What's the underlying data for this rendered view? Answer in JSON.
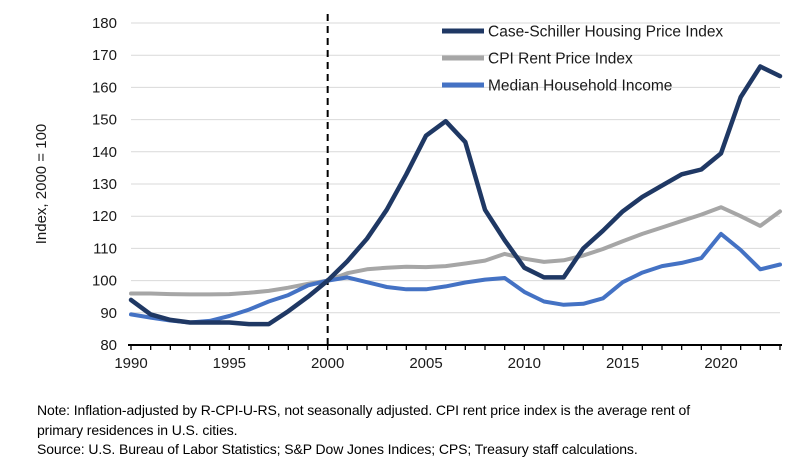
{
  "chart_data": {
    "type": "line",
    "title": "",
    "xlabel": "",
    "ylabel": "Index, 2000 = 100",
    "xlim": [
      1990,
      2023
    ],
    "ylim": [
      80,
      180
    ],
    "grid": "horizontal",
    "legend_position": "top-right",
    "x": [
      1990,
      1991,
      1992,
      1993,
      1994,
      1995,
      1996,
      1997,
      1998,
      1999,
      2000,
      2001,
      2002,
      2003,
      2004,
      2005,
      2006,
      2007,
      2008,
      2009,
      2010,
      2011,
      2012,
      2013,
      2014,
      2015,
      2016,
      2017,
      2018,
      2019,
      2020,
      2021,
      2022,
      2023
    ],
    "x_tick_labels": [
      1990,
      1995,
      2000,
      2005,
      2010,
      2015,
      2020
    ],
    "y_tick_labels": [
      80,
      90,
      100,
      110,
      120,
      130,
      140,
      150,
      160,
      170,
      180
    ],
    "reference_line": {
      "x": 2000,
      "style": "dashed",
      "color": "#000000"
    },
    "series": [
      {
        "name": "Case-Schiller Housing Price Index",
        "color": "#1f3864",
        "values": [
          94,
          89.5,
          87.8,
          87,
          87,
          87,
          86.5,
          86.5,
          90.5,
          95,
          100,
          106,
          113,
          122,
          133,
          145,
          149.5,
          143,
          122,
          112.5,
          104,
          101,
          101,
          110,
          115.5,
          121.5,
          126,
          129.5,
          133,
          134.5,
          139.5,
          157,
          166.5,
          163.5
        ]
      },
      {
        "name": "CPI Rent Price Index",
        "color": "#a6a6a6",
        "values": [
          96,
          96,
          95.8,
          95.7,
          95.7,
          95.8,
          96.2,
          96.8,
          97.8,
          99,
          100,
          102.3,
          103.5,
          104,
          104.3,
          104.2,
          104.5,
          105.3,
          106.2,
          108.3,
          106.8,
          105.8,
          106.3,
          107.8,
          109.8,
          112.2,
          114.5,
          116.5,
          118.5,
          120.5,
          122.8,
          120,
          117,
          121.5
        ]
      },
      {
        "name": "Median Household Income",
        "color": "#4472c4",
        "values": [
          89.5,
          88.5,
          87.6,
          87,
          87.5,
          89,
          91,
          93.5,
          95.5,
          98.5,
          100,
          101,
          99.5,
          98,
          97.3,
          97.3,
          98.2,
          99.4,
          100.3,
          100.8,
          96.5,
          93.5,
          92.5,
          92.8,
          94.5,
          99.5,
          102.5,
          104.5,
          105.5,
          107,
          114.5,
          109.5,
          103.5,
          105
        ]
      }
    ]
  },
  "colors": {
    "grid": "#d9d9d9",
    "axis": "#000000",
    "text": "#1a1a1a",
    "background": "#ffffff"
  },
  "notes": {
    "note": "Note: Inflation-adjusted by R-CPI-U-RS, not seasonally adjusted. CPI rent price index is the average rent of primary residences in U.S. cities.",
    "source": "Source: U.S. Bureau of Labor Statistics; S&P Dow Jones Indices; CPS; Treasury staff calculations."
  }
}
